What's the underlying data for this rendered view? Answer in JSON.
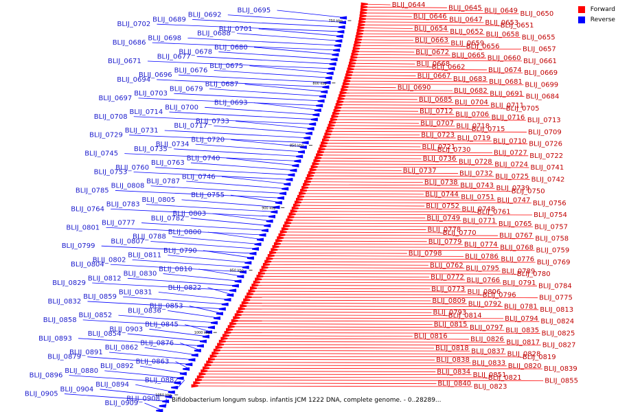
{
  "legend": {
    "forward_label": "Forward",
    "reverse_label": "Reverse",
    "forward_color": "#ff0000",
    "reverse_color": "#0000ff"
  },
  "caption": "Bifidobacterium longum subsp. infantis JCM 1222 DNA, complete genome. - 0..28289...",
  "ticks": [
    "750 kbp",
    "800 kbp",
    "850 kbp",
    "900 kbp",
    "950 kbp",
    "1000 kbp",
    "1050 kbp"
  ],
  "reverse_genes": [
    "BLIJ_0695",
    "BLIJ_0692",
    "BLIJ_0689",
    "BLIJ_0702",
    "BLIJ_0701",
    "BLIJ_0688",
    "BLIJ_0698",
    "BLIJ_0686",
    "BLIJ_0680",
    "BLIJ_0678",
    "BLIJ_0677",
    "BLIJ_0671",
    "BLIJ_0675",
    "BLIJ_0676",
    "BLIJ_0696",
    "BLIJ_0694",
    "BLIJ_0687",
    "BLIJ_0679",
    "BLIJ_0703",
    "BLIJ_0697",
    "BLIJ_0693",
    "BLIJ_0700",
    "BLIJ_0714",
    "BLIJ_0708",
    "BLIJ_0733",
    "BLIJ_0717",
    "BLIJ_0731",
    "BLIJ_0729",
    "BLIJ_0720",
    "BLIJ_0734",
    "BLIJ_0735",
    "BLIJ_0745",
    "BLIJ_0740",
    "BLIJ_0763",
    "BLIJ_0760",
    "BLIJ_0753",
    "BLIJ_0746",
    "BLIJ_0787",
    "BLIJ_0808",
    "BLIJ_0785",
    "BLIJ_0755",
    "BLIJ_0805",
    "BLIJ_0783",
    "BLIJ_0764",
    "BLIJ_0803",
    "BLIJ_0782",
    "BLIJ_0777",
    "BLIJ_0801",
    "BLIJ_0800",
    "BLIJ_0788",
    "BLIJ_0807",
    "BLIJ_0799",
    "BLIJ_0790",
    "BLIJ_0811",
    "BLIJ_0802",
    "BLIJ_0804",
    "BLIJ_0810",
    "BLIJ_0830",
    "BLIJ_0812",
    "BLIJ_0829",
    "BLIJ_0822",
    "BLIJ_0831",
    "BLIJ_0859",
    "BLIJ_0832",
    "BLIJ_0853",
    "BLIJ_0836",
    "BLIJ_0852",
    "BLIJ_0858",
    "BLIJ_0845",
    "BLIJ_0903",
    "BLIJ_0854",
    "BLIJ_0893",
    "BLIJ_0876",
    "BLIJ_0862",
    "BLIJ_0891",
    "BLIJ_0879",
    "BLIJ_0863",
    "BLIJ_0892",
    "BLIJ_0880",
    "BLIJ_0896",
    "BLIJ_0882",
    "BLIJ_0894",
    "BLIJ_0904",
    "BLIJ_0905",
    "BLIJ_0908",
    "BLIJ_0909"
  ],
  "forward_genes": [
    "BLIJ_0644",
    "BLIJ_0645",
    "BLIJ_0649",
    "BLIJ_0650",
    "BLIJ_0646",
    "BLIJ_0647",
    "BLIJ_0653",
    "BLIJ_0651",
    "BLIJ_0654",
    "BLIJ_0652",
    "BLIJ_0658",
    "BLIJ_0655",
    "BLIJ_0663",
    "BLIJ_0659",
    "BLIJ_0656",
    "BLIJ_0657",
    "BLIJ_0672",
    "BLIJ_0665",
    "BLIJ_0660",
    "BLIJ_0661",
    "BLIJ_0668",
    "BLIJ_0662",
    "BLIJ_0674",
    "BLIJ_0669",
    "BLIJ_0667",
    "BLIJ_0683",
    "BLIJ_0681",
    "BLIJ_0699",
    "BLIJ_0690",
    "BLIJ_0682",
    "BLIJ_0691",
    "BLIJ_0684",
    "BLIJ_0685",
    "BLIJ_0704",
    "BLIJ_0711",
    "BLIJ_0705",
    "BLIJ_0712",
    "BLIJ_0706",
    "BLIJ_0716",
    "BLIJ_0713",
    "BLIJ_0707",
    "BLIJ_0718",
    "BLIJ_0715",
    "BLIJ_0709",
    "BLIJ_0723",
    "BLIJ_0719",
    "BLIJ_0710",
    "BLIJ_0726",
    "BLIJ_0721",
    "BLIJ_0730",
    "BLIJ_0727",
    "BLIJ_0722",
    "BLIJ_0736",
    "BLIJ_0728",
    "BLIJ_0724",
    "BLIJ_0741",
    "BLIJ_0737",
    "BLIJ_0732",
    "BLIJ_0725",
    "BLIJ_0742",
    "BLIJ_0738",
    "BLIJ_0743",
    "BLIJ_0739",
    "BLIJ_0750",
    "BLIJ_0744",
    "BLIJ_0751",
    "BLIJ_0747",
    "BLIJ_0756",
    "BLIJ_0752",
    "BLIJ_0748",
    "BLIJ_0761",
    "BLIJ_0754",
    "BLIJ_0749",
    "BLIJ_0771",
    "BLIJ_0765",
    "BLIJ_0757",
    "BLIJ_0778",
    "BLIJ_0770",
    "BLIJ_0767",
    "BLIJ_0758",
    "BLIJ_0779",
    "BLIJ_0774",
    "BLIJ_0768",
    "BLIJ_0759",
    "BLIJ_0798",
    "BLIJ_0786",
    "BLIJ_0776",
    "BLIJ_0769",
    "BLIJ_0762",
    "BLIJ_0795",
    "BLIJ_0789",
    "BLIJ_0780",
    "BLIJ_0772",
    "BLIJ_0766",
    "BLIJ_0791",
    "BLIJ_0784",
    "BLIJ_0773",
    "BLIJ_0806",
    "BLIJ_0796",
    "BLIJ_0775",
    "BLIJ_0809",
    "BLIJ_0792",
    "BLIJ_0781",
    "BLIJ_0813",
    "BLIJ_0793",
    "BLIJ_0814",
    "BLIJ_0794",
    "BLIJ_0824",
    "BLIJ_0815",
    "BLIJ_0797",
    "BLIJ_0835",
    "BLIJ_0825",
    "BLIJ_0816",
    "BLIJ_0826",
    "BLIJ_0817",
    "BLIJ_0827",
    "BLIJ_0818",
    "BLIJ_0837",
    "BLIJ_0828",
    "BLIJ_0819",
    "BLIJ_0838",
    "BLIJ_0833",
    "BLIJ_0820",
    "BLIJ_0839",
    "BLIJ_0834",
    "BLIJ_0851",
    "BLIJ_0821",
    "BLIJ_0855",
    "BLIJ_0840",
    "BLIJ_0823"
  ]
}
